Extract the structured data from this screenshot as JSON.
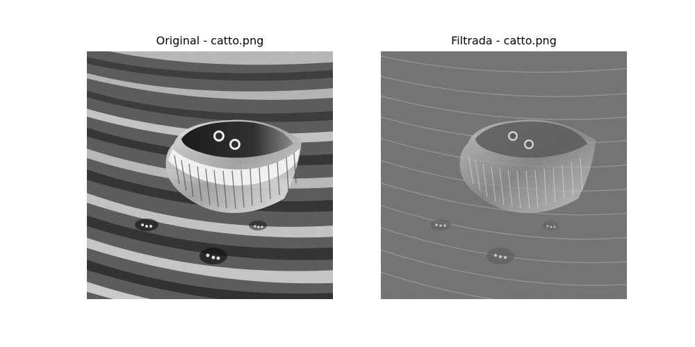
{
  "panels": [
    {
      "title": "Original - catto.png",
      "tone": "original"
    },
    {
      "title": "Filtrada - catto.png",
      "tone": "filtered"
    }
  ],
  "colors": {
    "background": "#ffffff",
    "title_text": "#000000"
  }
}
